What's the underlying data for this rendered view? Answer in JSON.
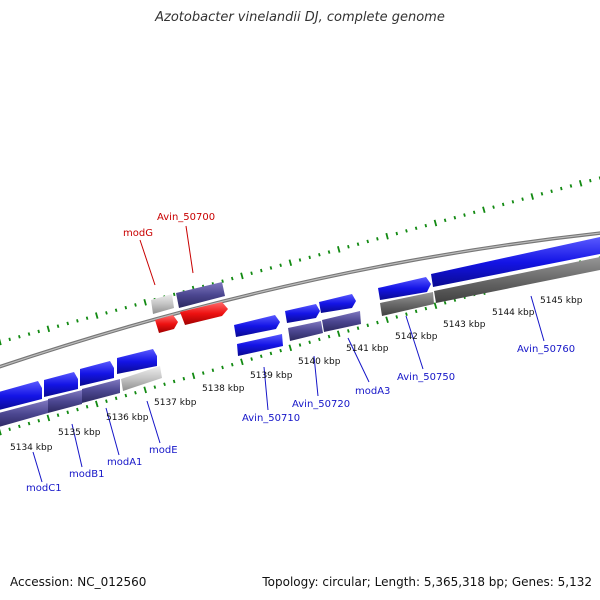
{
  "title": "Azotobacter vinelandii DJ, complete genome",
  "footer": {
    "accession": "Accession: NC_012560",
    "summary": "Topology: circular; Length: 5,365,318 bp; Genes: 5,132"
  },
  "colors": {
    "forward_gene": "#1414e6",
    "reverse_gene": "#4b4690",
    "highlight_gene": "#ee1111",
    "pseudo_gene": "#c4c4c4",
    "grey_gene": "#6a6a6a",
    "ticks": "#128a12",
    "backbone": "#8a8a8a"
  },
  "ticks": [
    {
      "label": "5134 kbp"
    },
    {
      "label": "5135 kbp"
    },
    {
      "label": "5136 kbp"
    },
    {
      "label": "5137 kbp"
    },
    {
      "label": "5138 kbp"
    },
    {
      "label": "5139 kbp"
    },
    {
      "label": "5140 kbp"
    },
    {
      "label": "5141 kbp"
    },
    {
      "label": "5142 kbp"
    },
    {
      "label": "5143 kbp"
    },
    {
      "label": "5144 kbp"
    },
    {
      "label": "5145 kbp"
    }
  ],
  "gene_labels": [
    {
      "name": "modC1",
      "color": "blue"
    },
    {
      "name": "modB1",
      "color": "blue"
    },
    {
      "name": "modA1",
      "color": "blue"
    },
    {
      "name": "modE",
      "color": "blue"
    },
    {
      "name": "Avin_50710",
      "color": "blue"
    },
    {
      "name": "Avin_50720",
      "color": "blue"
    },
    {
      "name": "modA3",
      "color": "blue"
    },
    {
      "name": "Avin_50750",
      "color": "blue"
    },
    {
      "name": "Avin_50760",
      "color": "blue"
    },
    {
      "name": "modG",
      "color": "red"
    },
    {
      "name": "Avin_50700",
      "color": "red"
    }
  ]
}
